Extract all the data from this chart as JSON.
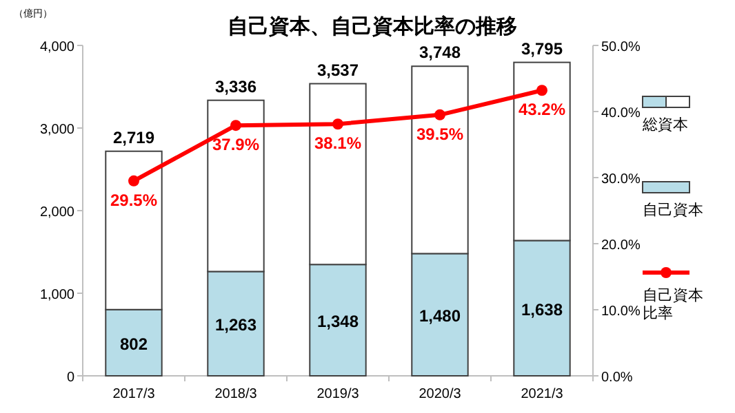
{
  "chart_data": {
    "type": "bar",
    "title": "自己資本、自己資本比率の推移",
    "ylabel": "（億円）",
    "categories": [
      "2017/3",
      "2018/3",
      "2019/3",
      "2020/3",
      "2021/3"
    ],
    "stacked": true,
    "legend": "right",
    "grid": false,
    "series": [
      {
        "name": "自己資本",
        "color": "#b7dde8",
        "values": [
          802,
          1263,
          1348,
          1480,
          1638
        ],
        "value_labels": [
          "802",
          "1,263",
          "1,348",
          "1,480",
          "1,638"
        ]
      },
      {
        "name": "総資本",
        "color": "#ffffff",
        "values": [
          1917,
          2073,
          2189,
          2268,
          2157
        ]
      },
      {
        "name": "自己資本比率",
        "type": "line",
        "axis": "y2",
        "color": "#ff0000",
        "marker": "circle",
        "values": [
          29.5,
          37.9,
          38.1,
          39.5,
          43.2
        ],
        "value_labels": [
          "29.5%",
          "37.9%",
          "38.1%",
          "39.5%",
          "43.2%"
        ]
      }
    ],
    "totals": [
      "2,719",
      "3,336",
      "3,537",
      "3,748",
      "3,795"
    ],
    "ylim": [
      0,
      4000
    ],
    "yticks": [
      0,
      {
        "value": 1000,
        "label": "1,000"
      },
      {
        "value": 2000,
        "label": "2,000"
      },
      {
        "value": 3000,
        "label": "3,000"
      },
      {
        "value": 4000,
        "label": "4,000"
      }
    ],
    "y2lim": [
      0,
      50
    ],
    "y2ticks": [
      {
        "value": 0,
        "label": "0.0%"
      },
      {
        "value": 10,
        "label": "10.0%"
      },
      {
        "value": 20,
        "label": "20.0%"
      },
      {
        "value": 30,
        "label": "30.0%"
      },
      {
        "value": 40,
        "label": "40.0%"
      },
      {
        "value": 50,
        "label": "50.0%"
      }
    ]
  }
}
